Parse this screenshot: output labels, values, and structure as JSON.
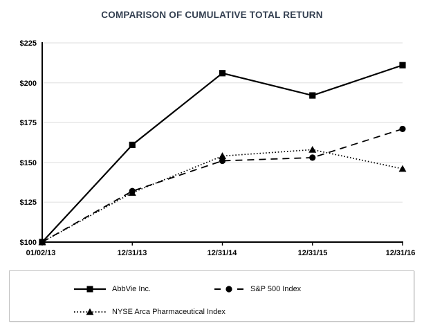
{
  "title": "COMPARISON OF CUMULATIVE TOTAL RETURN",
  "colors": {
    "title": "#333F50",
    "series": "#000000",
    "gridline": "#E9E9E9",
    "axis": "#000000",
    "legend_border": "#C3C3C3"
  },
  "chart_data": {
    "type": "line",
    "title": "COMPARISON OF CUMULATIVE TOTAL RETURN",
    "x": [
      "01/02/13",
      "12/31/13",
      "12/31/14",
      "12/31/15",
      "12/31/16"
    ],
    "series": [
      {
        "name": "AbbVie Inc.",
        "values": [
          100,
          161,
          206,
          192,
          211
        ],
        "line_style": "solid",
        "marker": "square",
        "color": "#000000"
      },
      {
        "name": "S&P 500 Index",
        "values": [
          100,
          132,
          151,
          153,
          171
        ],
        "line_style": "dashed",
        "marker": "circle",
        "color": "#000000"
      },
      {
        "name": "NYSE Arca Pharmaceutical Index",
        "values": [
          100,
          131,
          154,
          158,
          146
        ],
        "line_style": "dotted",
        "marker": "triangle",
        "color": "#000000"
      }
    ],
    "ylim": [
      100,
      225
    ],
    "y_ticks": [
      "$100",
      "$125",
      "$150",
      "$175",
      "$200",
      "$225"
    ],
    "y_tick_values": [
      100,
      125,
      150,
      175,
      200,
      225
    ],
    "grid": "horizontal",
    "legend_position": "bottom-box"
  }
}
